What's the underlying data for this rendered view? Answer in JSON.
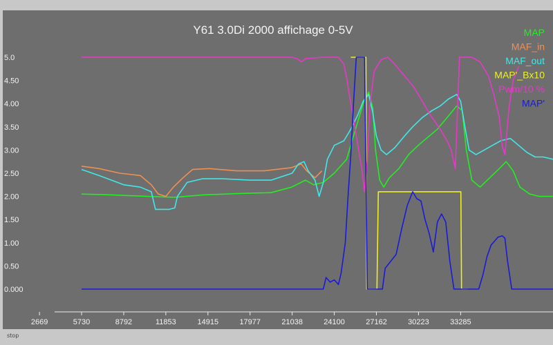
{
  "footer": {
    "stop_label": "stop"
  },
  "chart_data": {
    "type": "line",
    "title": "Y61 3.0Di 2000 affichage 0-5V",
    "xlabel": "",
    "ylabel": "",
    "grid": false,
    "legend_position": "top-right",
    "xlim": [
      0,
      40000
    ],
    "ylim": [
      0,
      5
    ],
    "x_ticks": [
      2669,
      5730,
      8792,
      11853,
      14915,
      17977,
      21038,
      24100,
      27162,
      30223,
      33285
    ],
    "y_ticks": [
      "0.000",
      "0.50",
      "1.00",
      "1.50",
      "2.00",
      "2.50",
      "3.00",
      "3.50",
      "4.00",
      "4.50",
      "5.0"
    ],
    "y_tick_values": [
      0,
      0.5,
      1,
      1.5,
      2,
      2.5,
      3,
      3.5,
      4,
      4.5,
      5
    ],
    "series": [
      {
        "name": "MAP",
        "color": "#22ee22",
        "points": [
          [
            5730,
            2.05
          ],
          [
            8000,
            2.03
          ],
          [
            10500,
            2.0
          ],
          [
            12500,
            1.98
          ],
          [
            14500,
            2.03
          ],
          [
            17000,
            2.06
          ],
          [
            19500,
            2.08
          ],
          [
            21000,
            2.2
          ],
          [
            22000,
            2.35
          ],
          [
            22600,
            2.25
          ],
          [
            23300,
            2.3
          ],
          [
            24100,
            2.5
          ],
          [
            25000,
            2.8
          ],
          [
            25600,
            3.4
          ],
          [
            26200,
            4.0
          ],
          [
            26600,
            4.25
          ],
          [
            26900,
            3.9
          ],
          [
            27100,
            3.0
          ],
          [
            27400,
            2.35
          ],
          [
            27700,
            2.2
          ],
          [
            28100,
            2.4
          ],
          [
            28800,
            2.6
          ],
          [
            29500,
            2.9
          ],
          [
            30200,
            3.1
          ],
          [
            31000,
            3.3
          ],
          [
            31600,
            3.45
          ],
          [
            32300,
            3.7
          ],
          [
            33000,
            3.95
          ],
          [
            33400,
            3.85
          ],
          [
            33700,
            3.0
          ],
          [
            34100,
            2.35
          ],
          [
            34700,
            2.2
          ],
          [
            35400,
            2.4
          ],
          [
            36100,
            2.6
          ],
          [
            36600,
            2.75
          ],
          [
            37100,
            2.55
          ],
          [
            37600,
            2.2
          ],
          [
            38300,
            2.05
          ],
          [
            39000,
            2.0
          ],
          [
            40000,
            2.0
          ]
        ]
      },
      {
        "name": "MAF_in",
        "color": "#f09050",
        "points": [
          [
            5730,
            2.65
          ],
          [
            7000,
            2.6
          ],
          [
            8500,
            2.5
          ],
          [
            10000,
            2.45
          ],
          [
            10800,
            2.25
          ],
          [
            11300,
            2.05
          ],
          [
            11853,
            2.0
          ],
          [
            12400,
            2.2
          ],
          [
            13100,
            2.4
          ],
          [
            13800,
            2.58
          ],
          [
            15000,
            2.6
          ],
          [
            17000,
            2.55
          ],
          [
            19000,
            2.55
          ],
          [
            21000,
            2.62
          ],
          [
            21700,
            2.7
          ],
          [
            22100,
            2.55
          ],
          [
            22700,
            2.4
          ],
          [
            23200,
            2.55
          ]
        ]
      },
      {
        "name": "MAF_out",
        "color": "#40e8e8",
        "points": [
          [
            5730,
            2.58
          ],
          [
            7000,
            2.45
          ],
          [
            8792,
            2.25
          ],
          [
            10000,
            2.2
          ],
          [
            10800,
            2.1
          ],
          [
            11100,
            1.72
          ],
          [
            12100,
            1.72
          ],
          [
            12500,
            1.75
          ],
          [
            12700,
            2.0
          ],
          [
            13400,
            2.3
          ],
          [
            14500,
            2.38
          ],
          [
            16000,
            2.38
          ],
          [
            17977,
            2.35
          ],
          [
            19500,
            2.35
          ],
          [
            21038,
            2.5
          ],
          [
            21500,
            2.7
          ],
          [
            21900,
            2.75
          ],
          [
            22200,
            2.55
          ],
          [
            22700,
            2.35
          ],
          [
            23000,
            2.0
          ],
          [
            23300,
            2.3
          ],
          [
            23600,
            2.8
          ],
          [
            24100,
            3.1
          ],
          [
            24800,
            3.2
          ],
          [
            25300,
            3.45
          ],
          [
            25800,
            3.75
          ],
          [
            26200,
            4.05
          ],
          [
            26600,
            4.2
          ],
          [
            26900,
            3.8
          ],
          [
            27162,
            3.3
          ],
          [
            27500,
            3.0
          ],
          [
            27900,
            2.9
          ],
          [
            28500,
            3.05
          ],
          [
            29200,
            3.3
          ],
          [
            29800,
            3.5
          ],
          [
            30500,
            3.7
          ],
          [
            31200,
            3.85
          ],
          [
            31800,
            3.95
          ],
          [
            32400,
            4.1
          ],
          [
            33000,
            4.2
          ],
          [
            33285,
            4.05
          ],
          [
            33600,
            3.5
          ],
          [
            33900,
            3.0
          ],
          [
            34400,
            2.9
          ],
          [
            35000,
            3.0
          ],
          [
            35600,
            3.1
          ],
          [
            36200,
            3.2
          ],
          [
            36900,
            3.25
          ],
          [
            37500,
            3.1
          ],
          [
            38100,
            2.95
          ],
          [
            38700,
            2.85
          ],
          [
            39300,
            2.85
          ],
          [
            40000,
            2.8
          ]
        ]
      },
      {
        "name": "MAP'_Bx10",
        "color": "#f0f020",
        "points": [
          [
            25300,
            5.0
          ],
          [
            26400,
            5.0
          ],
          [
            26450,
            0.0
          ],
          [
            27200,
            0.0
          ],
          [
            27300,
            2.1
          ],
          [
            28400,
            2.1
          ],
          [
            30223,
            2.1
          ],
          [
            31800,
            2.1
          ],
          [
            33300,
            2.1
          ],
          [
            33350,
            0.0
          ],
          [
            33800,
            0.0
          ]
        ]
      },
      {
        "name": "Pwm/10 %",
        "color": "#e838c8",
        "points": [
          [
            5730,
            5.0
          ],
          [
            10000,
            5.0
          ],
          [
            15000,
            5.0
          ],
          [
            19500,
            5.0
          ],
          [
            21038,
            5.0
          ],
          [
            21400,
            4.97
          ],
          [
            21700,
            4.9
          ],
          [
            22000,
            4.97
          ],
          [
            23300,
            5.0
          ],
          [
            24400,
            5.0
          ],
          [
            24800,
            4.85
          ],
          [
            25000,
            4.55
          ],
          [
            25300,
            4.0
          ],
          [
            25700,
            3.3
          ],
          [
            26100,
            2.6
          ],
          [
            26300,
            2.1
          ],
          [
            26500,
            2.8
          ],
          [
            26700,
            4.0
          ],
          [
            27000,
            4.7
          ],
          [
            27500,
            4.95
          ],
          [
            28000,
            5.0
          ],
          [
            28500,
            4.85
          ],
          [
            29200,
            4.6
          ],
          [
            29900,
            4.35
          ],
          [
            30500,
            4.05
          ],
          [
            31100,
            3.75
          ],
          [
            31800,
            3.45
          ],
          [
            32300,
            3.2
          ],
          [
            32600,
            3.0
          ],
          [
            32900,
            2.6
          ],
          [
            33200,
            5.0
          ],
          [
            33600,
            5.0
          ],
          [
            34100,
            5.0
          ],
          [
            34700,
            4.9
          ],
          [
            35300,
            4.6
          ],
          [
            35700,
            4.2
          ],
          [
            36100,
            3.7
          ],
          [
            36300,
            3.1
          ],
          [
            36500,
            2.9
          ],
          [
            36800,
            3.9
          ],
          [
            37100,
            4.5
          ],
          [
            37500,
            4.8
          ]
        ]
      },
      {
        "name": "MAP'",
        "color": "#1a1ad8",
        "points": [
          [
            5730,
            0.0
          ],
          [
            10000,
            0.0
          ],
          [
            15000,
            0.0
          ],
          [
            20000,
            0.0
          ],
          [
            23300,
            0.0
          ],
          [
            23500,
            0.25
          ],
          [
            23800,
            0.15
          ],
          [
            24100,
            0.2
          ],
          [
            24400,
            0.1
          ],
          [
            24600,
            0.35
          ],
          [
            24900,
            1.0
          ],
          [
            25100,
            2.0
          ],
          [
            25300,
            2.9
          ],
          [
            25500,
            4.0
          ],
          [
            25700,
            5.0
          ],
          [
            26300,
            5.0
          ],
          [
            26500,
            0.0
          ],
          [
            27600,
            0.0
          ],
          [
            27800,
            0.45
          ],
          [
            28200,
            0.6
          ],
          [
            28600,
            0.75
          ],
          [
            29000,
            1.3
          ],
          [
            29400,
            1.8
          ],
          [
            29800,
            2.1
          ],
          [
            30100,
            1.95
          ],
          [
            30400,
            1.9
          ],
          [
            30700,
            1.5
          ],
          [
            31000,
            1.2
          ],
          [
            31300,
            0.8
          ],
          [
            31600,
            1.45
          ],
          [
            31900,
            1.62
          ],
          [
            32200,
            1.45
          ],
          [
            32500,
            0.6
          ],
          [
            32800,
            0.0
          ],
          [
            34600,
            0.0
          ],
          [
            34900,
            0.3
          ],
          [
            35200,
            0.7
          ],
          [
            35500,
            0.95
          ],
          [
            35800,
            1.05
          ],
          [
            36000,
            1.12
          ],
          [
            36300,
            1.15
          ],
          [
            36500,
            1.1
          ],
          [
            36700,
            0.6
          ],
          [
            37000,
            0.0
          ],
          [
            38000,
            0.0
          ],
          [
            40000,
            0.0
          ]
        ]
      }
    ]
  }
}
